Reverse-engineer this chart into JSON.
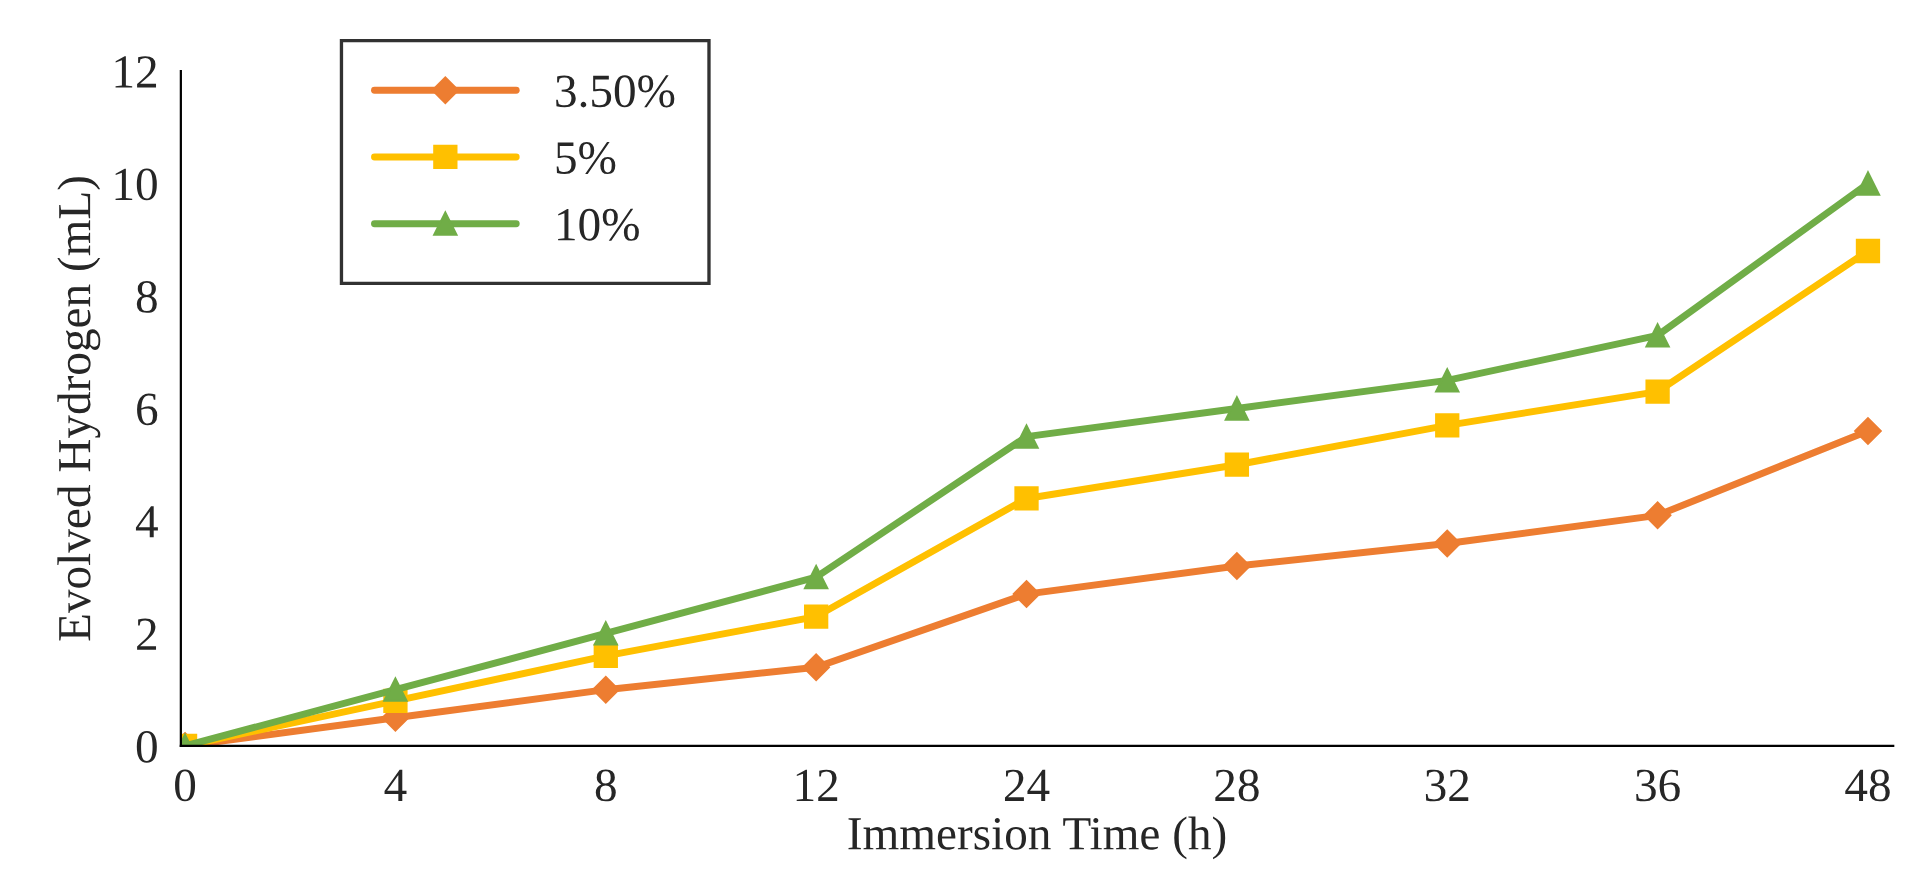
{
  "chart_data": {
    "type": "line",
    "xlabel": "Immersion Time (h)",
    "ylabel": "Evolved Hydrogen (mL)",
    "categories": [
      "0",
      "4",
      "8",
      "12",
      "24",
      "28",
      "32",
      "36",
      "48"
    ],
    "series": [
      {
        "name": "3.50%",
        "color": "#ed7d31",
        "marker": "diamond",
        "values": [
          0,
          0.5,
          1.0,
          1.4,
          2.7,
          3.2,
          3.6,
          4.1,
          5.6
        ]
      },
      {
        "name": "5%",
        "color": "#ffc000",
        "marker": "square",
        "values": [
          0,
          0.8,
          1.6,
          2.3,
          4.4,
          5.0,
          5.7,
          6.3,
          8.8
        ]
      },
      {
        "name": "10%",
        "color": "#70ad47",
        "marker": "triangle",
        "values": [
          0,
          1.0,
          2.0,
          3.0,
          5.5,
          6.0,
          6.5,
          7.3,
          10.0
        ]
      }
    ],
    "ylim": [
      0,
      12
    ],
    "yticks": [
      0,
      2,
      4,
      6,
      8,
      10,
      12
    ],
    "grid": false,
    "legend": "top left",
    "line_style": "solid"
  }
}
